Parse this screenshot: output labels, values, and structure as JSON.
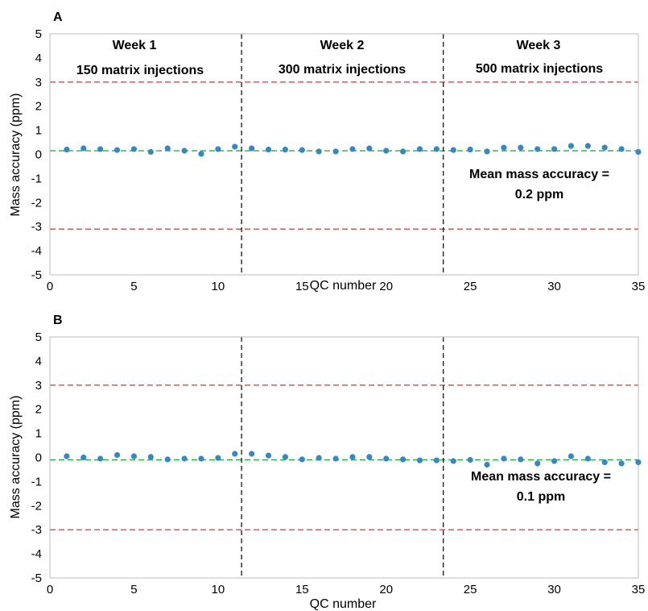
{
  "chart_data": [
    {
      "type": "scatter",
      "panel_label": "A",
      "xlabel": "QC number",
      "ylabel": "Mass accuracy (ppm)",
      "xlim": [
        0,
        35
      ],
      "ylim": [
        -5,
        5
      ],
      "x_ticks": [
        "0",
        "5",
        "10",
        "15",
        "20",
        "25",
        "30",
        "35"
      ],
      "y_ticks": [
        "5",
        "4",
        "3",
        "2",
        "1",
        "0",
        "-1",
        "-2",
        "-3",
        "-4",
        "-5"
      ],
      "grid": false,
      "point_color": "#3a87c0",
      "x": [
        1,
        2,
        3,
        4,
        5,
        6,
        7,
        8,
        9,
        10,
        11,
        12,
        13,
        14,
        15,
        16,
        17,
        18,
        19,
        20,
        21,
        22,
        23,
        24,
        25,
        26,
        27,
        28,
        29,
        30,
        31,
        32,
        33,
        34,
        35
      ],
      "values": [
        0.2,
        0.25,
        0.22,
        0.18,
        0.22,
        0.1,
        0.25,
        0.15,
        0.02,
        0.22,
        0.32,
        0.25,
        0.2,
        0.2,
        0.18,
        0.12,
        0.12,
        0.22,
        0.25,
        0.15,
        0.12,
        0.22,
        0.22,
        0.18,
        0.2,
        0.12,
        0.28,
        0.28,
        0.22,
        0.22,
        0.35,
        0.35,
        0.28,
        0.22,
        0.1
      ],
      "reference_lines": [
        {
          "y": 3,
          "color": "#e0443e",
          "style": "dashed"
        },
        {
          "y": -3.1,
          "color": "#e0443e",
          "style": "dashed"
        },
        {
          "y": 0.15,
          "color": "#2eaa4a",
          "style": "dashed"
        }
      ],
      "dividers_x": [
        11.4,
        23.4
      ],
      "divider_color": "#000000",
      "weeks": [
        {
          "label": "Week 1",
          "injections": "150 matrix injections"
        },
        {
          "label": "Week 2",
          "injections": "300 matrix injections"
        },
        {
          "label": "Week 3",
          "injections": "500 matrix injections"
        }
      ],
      "annotation": {
        "line1": "Mean mass accuracy =",
        "line2": "0.2 ppm"
      }
    },
    {
      "type": "scatter",
      "panel_label": "B",
      "xlabel": "QC number",
      "ylabel": "Mass accuracy (ppm)",
      "xlim": [
        0,
        35
      ],
      "ylim": [
        -5,
        5
      ],
      "x_ticks": [
        "0",
        "5",
        "10",
        "15",
        "20",
        "25",
        "30",
        "35"
      ],
      "y_ticks": [
        "5",
        "4",
        "3",
        "2",
        "1",
        "0",
        "-1",
        "-2",
        "-3",
        "-4",
        "-5"
      ],
      "grid": false,
      "point_color": "#3a87c0",
      "x": [
        1,
        2,
        3,
        4,
        5,
        6,
        7,
        8,
        9,
        10,
        11,
        12,
        13,
        14,
        15,
        16,
        17,
        18,
        19,
        20,
        21,
        22,
        23,
        24,
        25,
        26,
        27,
        28,
        29,
        30,
        31,
        32,
        33,
        34,
        35
      ],
      "values": [
        0.05,
        0.0,
        -0.05,
        0.1,
        0.05,
        0.02,
        -0.08,
        -0.05,
        -0.05,
        -0.02,
        0.15,
        0.15,
        0.08,
        0.02,
        -0.08,
        -0.02,
        -0.05,
        0.02,
        0.02,
        -0.05,
        -0.08,
        -0.12,
        -0.12,
        -0.15,
        -0.1,
        -0.3,
        -0.05,
        -0.08,
        -0.25,
        -0.15,
        0.05,
        -0.05,
        -0.2,
        -0.25,
        -0.2
      ],
      "reference_lines": [
        {
          "y": 3,
          "color": "#e0443e",
          "style": "dashed"
        },
        {
          "y": -3,
          "color": "#e0443e",
          "style": "dashed"
        },
        {
          "y": -0.1,
          "color": "#2eaa4a",
          "style": "dashed"
        }
      ],
      "dividers_x": [
        11.4,
        23.4
      ],
      "divider_color": "#000000",
      "weeks": [],
      "annotation": {
        "line1": "Mean mass accuracy =",
        "line2": "0.1 ppm"
      }
    }
  ]
}
